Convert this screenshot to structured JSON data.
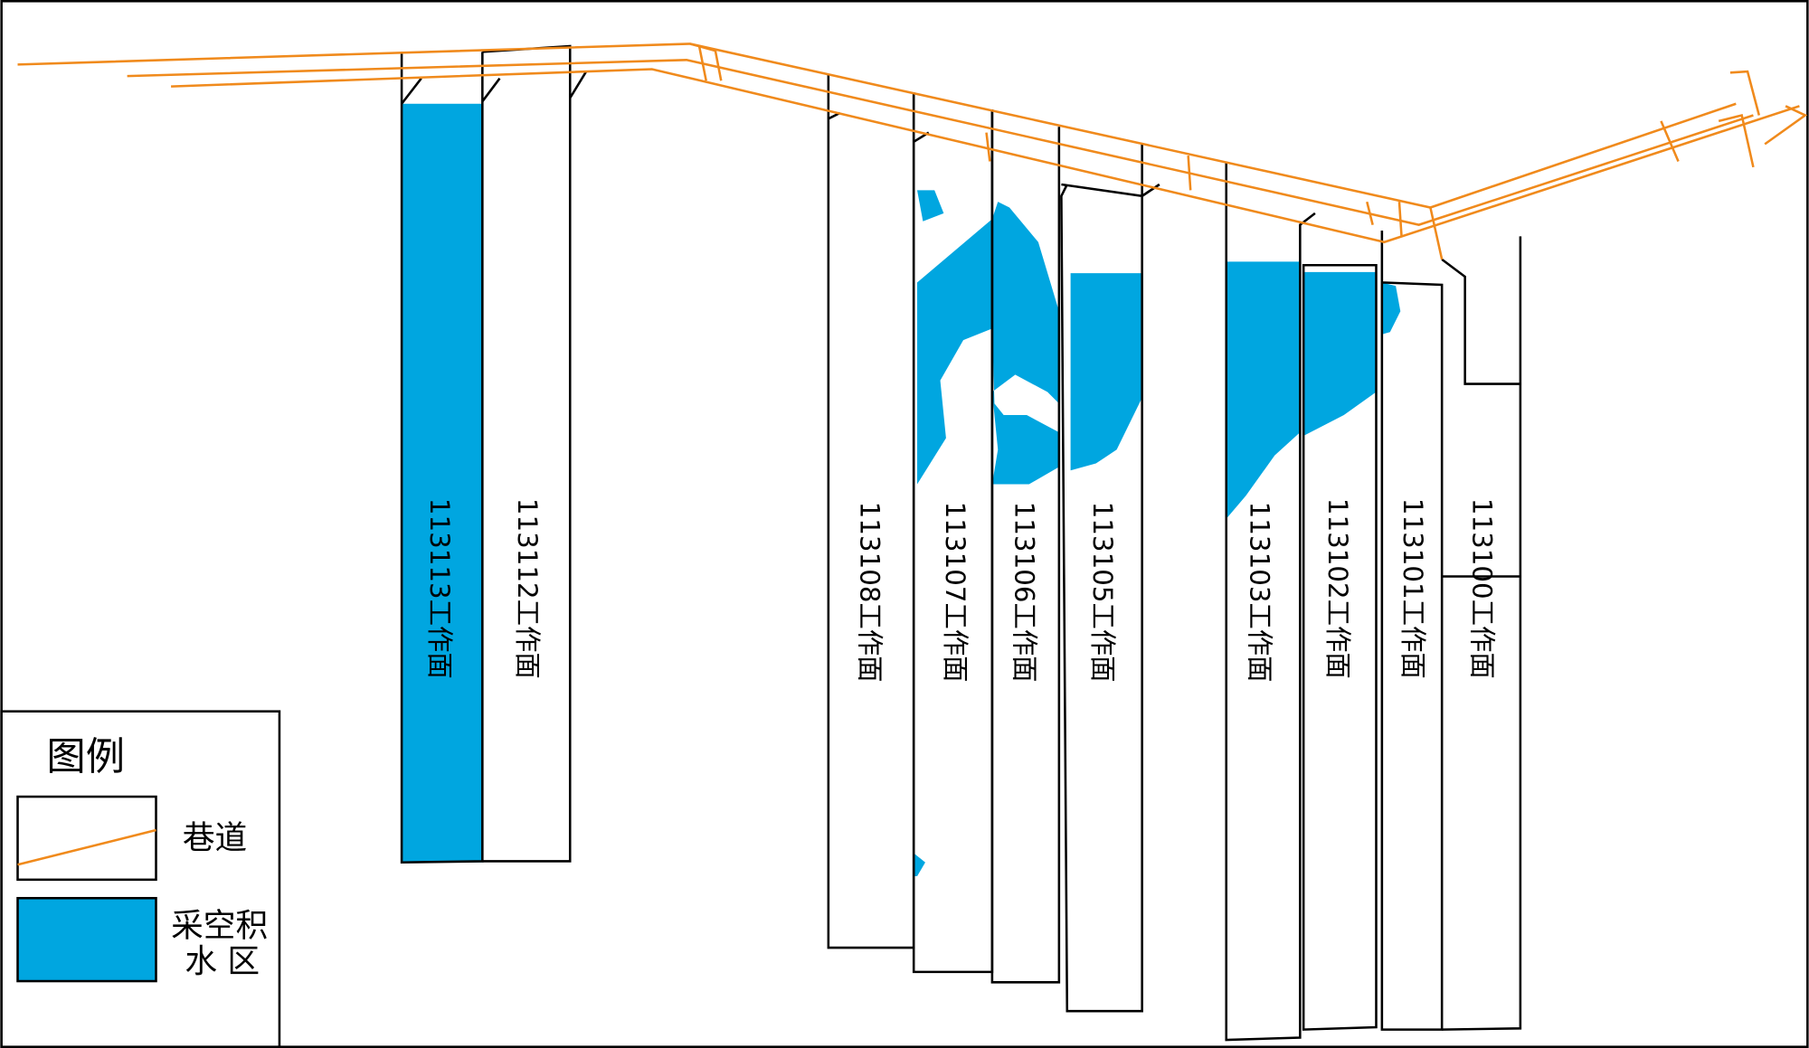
{
  "legend": {
    "title": "图例",
    "items": [
      {
        "label": "巷道"
      },
      {
        "label_lines": [
          "采空积",
          "水 区"
        ]
      }
    ]
  },
  "panels": [
    {
      "label": "113113工作面"
    },
    {
      "label": "113112工作面"
    },
    {
      "label": "113108工作面"
    },
    {
      "label": "113107工作面"
    },
    {
      "label": "113106工作面"
    },
    {
      "label": "113105工作面"
    },
    {
      "label": "113103工作面"
    },
    {
      "label": "113102工作面"
    },
    {
      "label": "113101工作面"
    },
    {
      "label": "113100工作面"
    }
  ]
}
